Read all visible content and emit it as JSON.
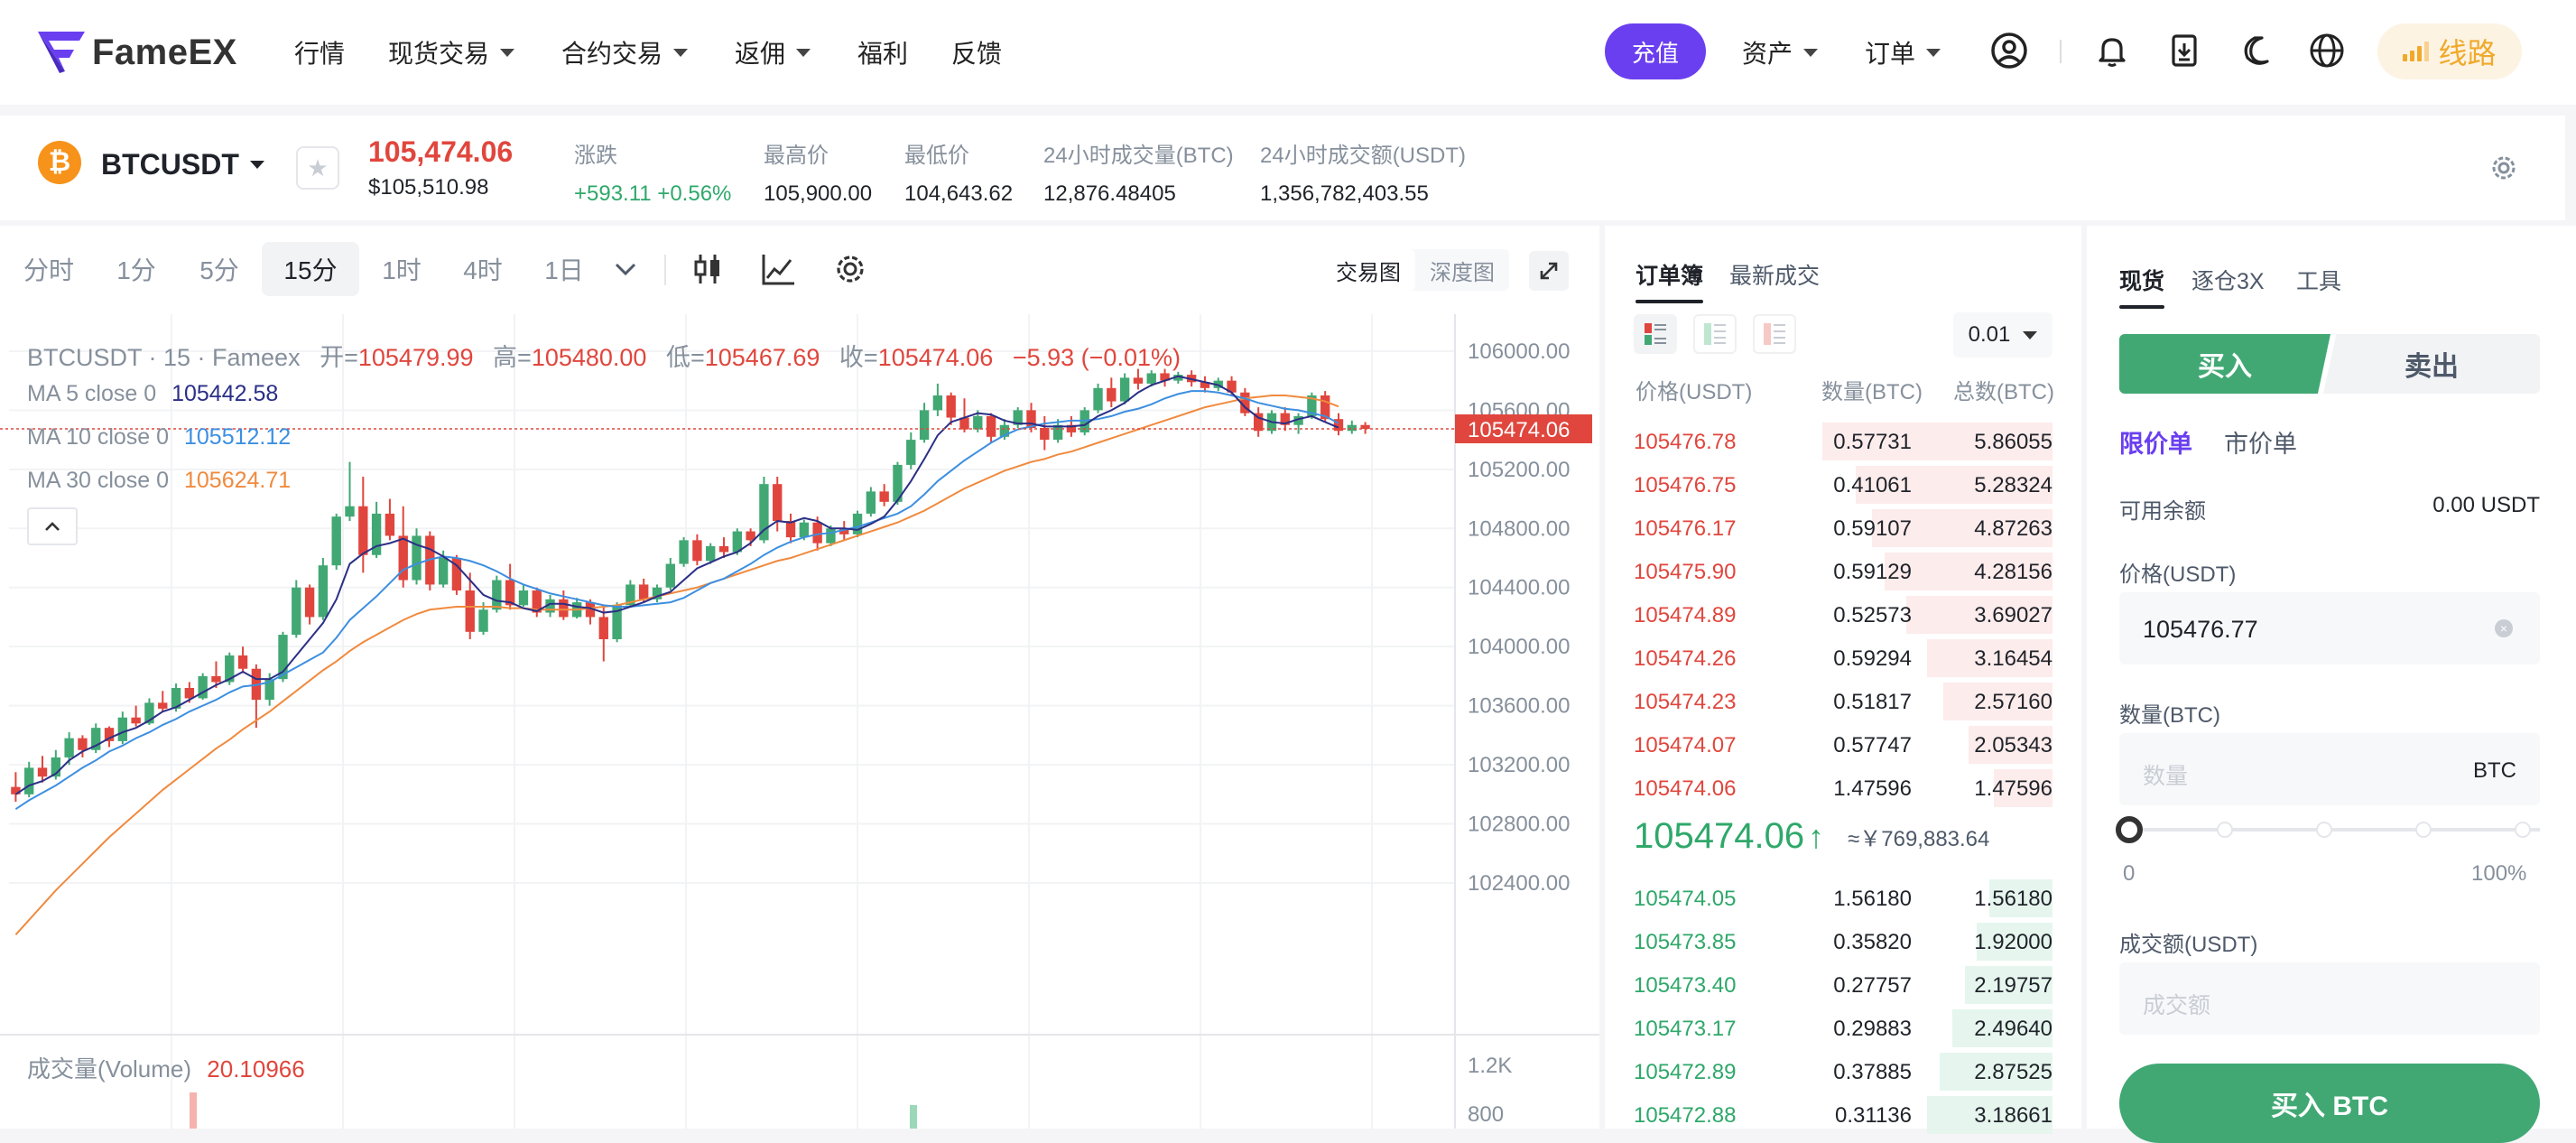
{
  "nav": {
    "brand": "FameEX",
    "items": [
      {
        "label": "行情",
        "dropdown": false
      },
      {
        "label": "现货交易",
        "dropdown": true
      },
      {
        "label": "合约交易",
        "dropdown": true
      },
      {
        "label": "返佣",
        "dropdown": true
      },
      {
        "label": "福利",
        "dropdown": false
      },
      {
        "label": "反馈",
        "dropdown": false
      }
    ],
    "deposit": "充值",
    "assets": "资产",
    "orders": "订单",
    "route": "线路",
    "accent": "#6a3ff0",
    "icons": [
      "user-icon",
      "bell-icon",
      "download-icon",
      "moon-icon",
      "globe-icon"
    ]
  },
  "ticker": {
    "symbol": "BTCUSDT",
    "coin_glyph": "₿",
    "last_price": "105,474.06",
    "usd_price": "$105,510.98",
    "stats": [
      {
        "label": "涨跌",
        "value": "+593.11 +0.56%",
        "up": true
      },
      {
        "label": "最高价",
        "value": "105,900.00"
      },
      {
        "label": "最低价",
        "value": "104,643.62"
      },
      {
        "label": "24小时成交量(BTC)",
        "value": "12,876.48405"
      },
      {
        "label": "24小时成交额(USDT)",
        "value": "1,356,782,403.55"
      }
    ]
  },
  "chart_toolbar": {
    "timeframes": [
      "分时",
      "1分",
      "5分",
      "15分",
      "1时",
      "4时",
      "1日"
    ],
    "active_timeframe": "15分",
    "views": [
      "交易图",
      "深度图"
    ],
    "active_view": "交易图"
  },
  "chart_legend": {
    "ohlc": {
      "title": "BTCUSDT · 15 · Fameex",
      "open_label": "开=",
      "open": "105479.99",
      "high_label": "高=",
      "high": "105480.00",
      "low_label": "低=",
      "low": "105467.69",
      "close_label": "收=",
      "close": "105474.06",
      "change": "−5.93 (−0.01%)"
    },
    "ma": [
      {
        "label": "MA 5 close 0",
        "value": "105442.58",
        "color": "#2b2f86"
      },
      {
        "label": "MA 10 close 0",
        "value": "105512.12",
        "color": "#3d8fe0"
      },
      {
        "label": "MA 30 close 0",
        "value": "105624.71",
        "color": "#f08a3e"
      }
    ],
    "volume_label": "成交量(Volume)",
    "volume_value": "20.10966"
  },
  "chart_data": {
    "type": "candlestick",
    "symbol": "BTCUSDT",
    "interval": "15",
    "y_ticks": [
      106000,
      105600,
      105200,
      104800,
      104400,
      104000,
      103600,
      103200,
      102800,
      102400
    ],
    "y_tick_labels": [
      "106000.00",
      "105600.00",
      "105200.00",
      "104800.00",
      "104400.00",
      "104000.00",
      "103600.00",
      "103200.00",
      "102800.00",
      "102400.00"
    ],
    "ylim": [
      101850,
      106250
    ],
    "last_price": 105474.06,
    "last_price_label": "105474.06",
    "volume_ticks": [
      "1.2K",
      "800"
    ],
    "up_color": "#41a874",
    "down_color": "#e0463d",
    "candles": [
      [
        103050,
        103150,
        102950,
        103000
      ],
      [
        103000,
        103220,
        102980,
        103180
      ],
      [
        103180,
        103260,
        103080,
        103120
      ],
      [
        103120,
        103300,
        103100,
        103250
      ],
      [
        103250,
        103420,
        103200,
        103380
      ],
      [
        103380,
        103400,
        103250,
        103300
      ],
      [
        103300,
        103480,
        103280,
        103450
      ],
      [
        103450,
        103460,
        103320,
        103360
      ],
      [
        103360,
        103560,
        103340,
        103520
      ],
      [
        103520,
        103600,
        103460,
        103480
      ],
      [
        103480,
        103650,
        103470,
        103620
      ],
      [
        103620,
        103700,
        103560,
        103580
      ],
      [
        103580,
        103750,
        103560,
        103720
      ],
      [
        103720,
        103760,
        103620,
        103650
      ],
      [
        103650,
        103820,
        103640,
        103800
      ],
      [
        103800,
        103900,
        103720,
        103760
      ],
      [
        103760,
        103960,
        103740,
        103940
      ],
      [
        103940,
        104000,
        103820,
        103850
      ],
      [
        103850,
        103880,
        103450,
        103640
      ],
      [
        103640,
        103820,
        103600,
        103780
      ],
      [
        103780,
        104100,
        103760,
        104080
      ],
      [
        104080,
        104450,
        104060,
        104400
      ],
      [
        104400,
        104420,
        104150,
        104200
      ],
      [
        104200,
        104600,
        104180,
        104550
      ],
      [
        104550,
        104900,
        104520,
        104880
      ],
      [
        104880,
        105250,
        104850,
        104950
      ],
      [
        104950,
        105150,
        104500,
        104620
      ],
      [
        104620,
        104980,
        104600,
        104900
      ],
      [
        104900,
        105000,
        104720,
        104750
      ],
      [
        104750,
        104950,
        104400,
        104450
      ],
      [
        104450,
        104800,
        104420,
        104750
      ],
      [
        104750,
        104780,
        104380,
        104420
      ],
      [
        104420,
        104650,
        104400,
        104600
      ],
      [
        104600,
        104620,
        104350,
        104380
      ],
      [
        104380,
        104500,
        104050,
        104100
      ],
      [
        104100,
        104300,
        104080,
        104250
      ],
      [
        104250,
        104480,
        104230,
        104450
      ],
      [
        104450,
        104560,
        104250,
        104280
      ],
      [
        104280,
        104420,
        104270,
        104380
      ],
      [
        104380,
        104400,
        104200,
        104230
      ],
      [
        104230,
        104350,
        104200,
        104320
      ],
      [
        104320,
        104380,
        104180,
        104200
      ],
      [
        104200,
        104330,
        104190,
        104300
      ],
      [
        104300,
        104320,
        104150,
        104200
      ],
      [
        104200,
        104280,
        103900,
        104050
      ],
      [
        104050,
        104300,
        104030,
        104280
      ],
      [
        104280,
        104450,
        104270,
        104420
      ],
      [
        104420,
        104460,
        104300,
        104320
      ],
      [
        104320,
        104420,
        104300,
        104400
      ],
      [
        104400,
        104600,
        104380,
        104560
      ],
      [
        104560,
        104740,
        104540,
        104720
      ],
      [
        104720,
        104760,
        104550,
        104580
      ],
      [
        104580,
        104700,
        104560,
        104680
      ],
      [
        104680,
        104740,
        104600,
        104640
      ],
      [
        104640,
        104800,
        104620,
        104780
      ],
      [
        104780,
        104800,
        104680,
        104720
      ],
      [
        104720,
        105150,
        104700,
        105100
      ],
      [
        105100,
        105150,
        104780,
        104850
      ],
      [
        104850,
        104900,
        104700,
        104740
      ],
      [
        104740,
        104860,
        104720,
        104840
      ],
      [
        104840,
        104880,
        104650,
        104700
      ],
      [
        104700,
        104820,
        104680,
        104800
      ],
      [
        104800,
        104850,
        104720,
        104760
      ],
      [
        104760,
        104920,
        104740,
        104900
      ],
      [
        104900,
        105080,
        104880,
        105050
      ],
      [
        105050,
        105100,
        104950,
        104980
      ],
      [
        104980,
        105250,
        104960,
        105230
      ],
      [
        105230,
        105450,
        105200,
        105400
      ],
      [
        105400,
        105650,
        105380,
        105600
      ],
      [
        105600,
        105780,
        105560,
        105700
      ],
      [
        105700,
        105720,
        105500,
        105550
      ],
      [
        105550,
        105680,
        105450,
        105470
      ],
      [
        105470,
        105600,
        105450,
        105560
      ],
      [
        105560,
        105580,
        105380,
        105420
      ],
      [
        105420,
        105540,
        105400,
        105500
      ],
      [
        105500,
        105620,
        105480,
        105600
      ],
      [
        105600,
        105650,
        105450,
        105480
      ],
      [
        105480,
        105560,
        105330,
        105400
      ],
      [
        105400,
        105540,
        105380,
        105500
      ],
      [
        105500,
        105560,
        105420,
        105450
      ],
      [
        105450,
        105620,
        105430,
        105600
      ],
      [
        105600,
        105780,
        105580,
        105750
      ],
      [
        105750,
        105820,
        105620,
        105660
      ],
      [
        105660,
        105850,
        105640,
        105820
      ],
      [
        105820,
        105880,
        105740,
        105780
      ],
      [
        105780,
        105870,
        105760,
        105850
      ],
      [
        105850,
        105880,
        105760,
        105800
      ],
      [
        105800,
        105860,
        105780,
        105840
      ],
      [
        105840,
        105870,
        105760,
        105790
      ],
      [
        105790,
        105830,
        105720,
        105750
      ],
      [
        105750,
        105820,
        105730,
        105800
      ],
      [
        105800,
        105830,
        105700,
        105720
      ],
      [
        105720,
        105750,
        105560,
        105580
      ],
      [
        105580,
        105620,
        105420,
        105460
      ],
      [
        105460,
        105600,
        105440,
        105580
      ],
      [
        105580,
        105620,
        105460,
        105500
      ],
      [
        105500,
        105580,
        105440,
        105560
      ],
      [
        105560,
        105720,
        105540,
        105700
      ],
      [
        105700,
        105730,
        105520,
        105540
      ],
      [
        105540,
        105580,
        105430,
        105460
      ],
      [
        105460,
        105530,
        105440,
        105500
      ],
      [
        105500,
        105520,
        105440,
        105474
      ]
    ],
    "ma5": [
      103000,
      103060,
      103090,
      103140,
      103230,
      103290,
      103330,
      103380,
      103420,
      103450,
      103500,
      103560,
      103590,
      103640,
      103690,
      103740,
      103780,
      103830,
      103780,
      103780,
      103830,
      103940,
      104050,
      104160,
      104320,
      104560,
      104630,
      104680,
      104700,
      104730,
      104690,
      104660,
      104610,
      104550,
      104450,
      104350,
      104310,
      104300,
      104260,
      104240,
      104290,
      104290,
      104270,
      104260,
      104230,
      104240,
      104270,
      104300,
      104340,
      104370,
      104450,
      104530,
      104570,
      104610,
      104640,
      104700,
      104790,
      104850,
      104840,
      104870,
      104850,
      104800,
      104800,
      104790,
      104830,
      104880,
      104990,
      105120,
      105270,
      105430,
      105520,
      105550,
      105580,
      105570,
      105530,
      105510,
      105510,
      105490,
      105490,
      105490,
      105500,
      105560,
      105600,
      105650,
      105720,
      105770,
      105800,
      105830,
      105810,
      105790,
      105770,
      105720,
      105620,
      105550,
      105520,
      105510,
      105540,
      105560,
      105520,
      105482
    ],
    "ma10": [
      102900,
      102960,
      103010,
      103060,
      103120,
      103180,
      103230,
      103290,
      103330,
      103380,
      103420,
      103470,
      103510,
      103560,
      103600,
      103640,
      103690,
      103730,
      103740,
      103760,
      103810,
      103860,
      103910,
      103960,
      104060,
      104180,
      104260,
      104340,
      104430,
      104520,
      104560,
      104590,
      104610,
      104600,
      104580,
      104550,
      104510,
      104460,
      104420,
      104390,
      104360,
      104340,
      104320,
      104300,
      104280,
      104270,
      104270,
      104280,
      104290,
      104300,
      104330,
      104380,
      104430,
      104460,
      104510,
      104560,
      104620,
      104670,
      104710,
      104740,
      104760,
      104770,
      104790,
      104810,
      104840,
      104870,
      104900,
      104950,
      105030,
      105120,
      105190,
      105260,
      105320,
      105380,
      105430,
      105470,
      105490,
      105510,
      105520,
      105530,
      105530,
      105540,
      105560,
      105590,
      105610,
      105640,
      105680,
      105710,
      105730,
      105730,
      105720,
      105700,
      105680,
      105650,
      105630,
      105610,
      105600,
      105580,
      105560,
      105512
    ],
    "ma30": [
      102050,
      102150,
      102250,
      102350,
      102440,
      102530,
      102620,
      102710,
      102790,
      102870,
      102950,
      103030,
      103100,
      103170,
      103240,
      103310,
      103370,
      103440,
      103500,
      103560,
      103630,
      103700,
      103770,
      103840,
      103900,
      103970,
      104030,
      104080,
      104130,
      104180,
      104220,
      104250,
      104260,
      104270,
      104270,
      104270,
      104270,
      104260,
      104260,
      104250,
      104250,
      104250,
      104250,
      104260,
      104270,
      104280,
      104300,
      104320,
      104340,
      104360,
      104380,
      104400,
      104430,
      104460,
      104490,
      104520,
      104550,
      104580,
      104600,
      104630,
      104660,
      104690,
      104720,
      104750,
      104780,
      104810,
      104840,
      104880,
      104920,
      104970,
      105020,
      105070,
      105110,
      105150,
      105190,
      105220,
      105250,
      105270,
      105300,
      105320,
      105350,
      105380,
      105410,
      105440,
      105470,
      105500,
      105530,
      105560,
      105590,
      105620,
      105640,
      105660,
      105680,
      105690,
      105700,
      105700,
      105690,
      105680,
      105660,
      105625
    ]
  },
  "orderbook": {
    "tabs": [
      "订单簿",
      "最新成交"
    ],
    "active_tab": "订单簿",
    "precision": "0.01",
    "headers": {
      "price": "价格(USDT)",
      "qty": "数量(BTC)",
      "total": "总数(BTC)"
    },
    "asks": [
      {
        "price": "105476.78",
        "qty": "0.57731",
        "total": "5.86055",
        "depth": 0.55
      },
      {
        "price": "105476.75",
        "qty": "0.41061",
        "total": "5.28324",
        "depth": 0.47
      },
      {
        "price": "105476.17",
        "qty": "0.59107",
        "total": "4.87263",
        "depth": 0.43
      },
      {
        "price": "105475.90",
        "qty": "0.59129",
        "total": "4.28156",
        "depth": 0.4
      },
      {
        "price": "105474.89",
        "qty": "0.52573",
        "total": "3.69027",
        "depth": 0.35
      },
      {
        "price": "105474.26",
        "qty": "0.59294",
        "total": "3.16454",
        "depth": 0.3
      },
      {
        "price": "105474.23",
        "qty": "0.51817",
        "total": "2.57160",
        "depth": 0.26
      },
      {
        "price": "105474.07",
        "qty": "0.57747",
        "total": "2.05343",
        "depth": 0.2
      },
      {
        "price": "105474.06",
        "qty": "1.47596",
        "total": "1.47596",
        "depth": 0.14
      }
    ],
    "mid_price": "105474.06",
    "mid_arrow": "↑",
    "mid_cny": "≈￥769,883.64",
    "bids": [
      {
        "price": "105474.05",
        "qty": "1.56180",
        "total": "1.56180",
        "depth": 0.15
      },
      {
        "price": "105473.85",
        "qty": "0.35820",
        "total": "1.92000",
        "depth": 0.18
      },
      {
        "price": "105473.40",
        "qty": "0.27757",
        "total": "2.19757",
        "depth": 0.21
      },
      {
        "price": "105473.17",
        "qty": "0.29883",
        "total": "2.49640",
        "depth": 0.24
      },
      {
        "price": "105472.89",
        "qty": "0.37885",
        "total": "2.87525",
        "depth": 0.27
      },
      {
        "price": "105472.88",
        "qty": "0.31136",
        "total": "3.18661",
        "depth": 0.3
      }
    ]
  },
  "trade": {
    "tabs": [
      "现货",
      "逐仓3X",
      "工具"
    ],
    "active_tab": "现货",
    "buy_label": "买入",
    "sell_label": "卖出",
    "order_types": [
      "限价单",
      "市价单"
    ],
    "active_order_type": "限价单",
    "balance_label": "可用余额",
    "balance_value": "0.00 USDT",
    "price_label": "价格(USDT)",
    "price_value": "105476.77",
    "qty_label": "数量(BTC)",
    "qty_placeholder": "数量",
    "qty_unit": "BTC",
    "slider_min": "0",
    "slider_max": "100%",
    "slider_value": 0,
    "amount_label": "成交额(USDT)",
    "amount_placeholder": "成交额",
    "submit": "买入 BTC"
  }
}
